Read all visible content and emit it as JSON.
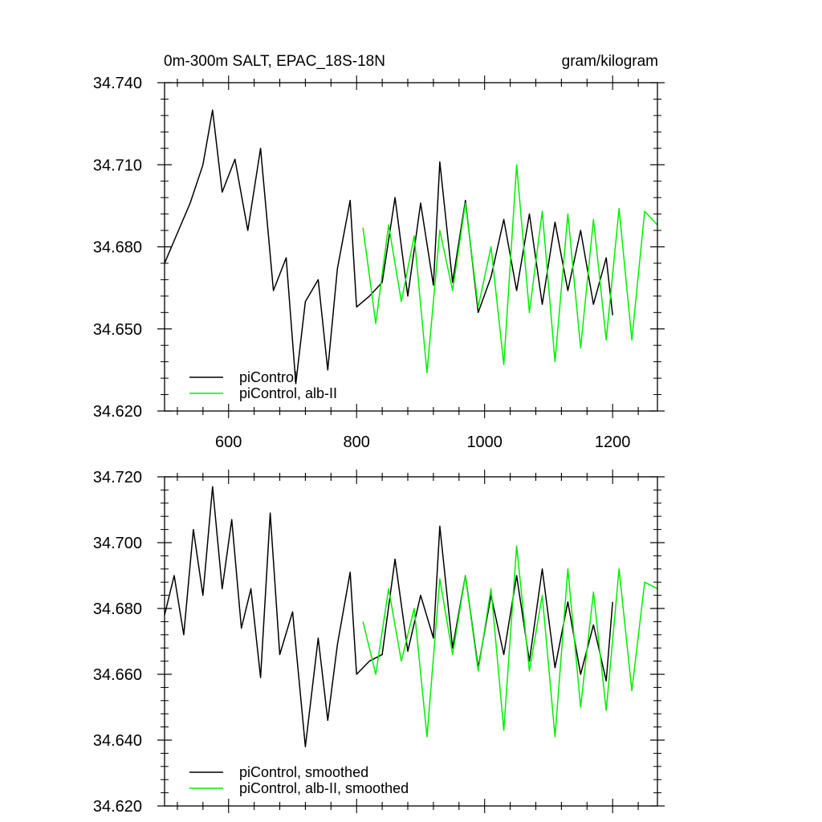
{
  "chart_data": [
    {
      "type": "line",
      "title_left": "0m-300m SALT, EPAC_18S-18N",
      "title_right": "gram/kilogram",
      "xlim": [
        500,
        1270
      ],
      "ylim": [
        34.62,
        34.74
      ],
      "x_ticks": [
        600,
        800,
        1000,
        1200
      ],
      "x_tick_labels": [
        "600",
        "800",
        "1000",
        "1200"
      ],
      "y_ticks": [
        34.62,
        34.65,
        34.68,
        34.71,
        34.74
      ],
      "y_tick_labels": [
        "34.620",
        "34.650",
        "34.680",
        "34.710",
        "34.740"
      ],
      "legend_position": "bottom-left",
      "series": [
        {
          "name": "piControl",
          "color": "#000000",
          "x": [
            500,
            520,
            540,
            560,
            575,
            590,
            610,
            630,
            650,
            670,
            690,
            705,
            720,
            740,
            755,
            770,
            790,
            800,
            820,
            840,
            860,
            880,
            900,
            920,
            930,
            950,
            970,
            990,
            1010,
            1030,
            1050,
            1070,
            1090,
            1110,
            1130,
            1150,
            1170,
            1190,
            1200
          ],
          "values": [
            34.674,
            34.685,
            34.696,
            34.71,
            34.73,
            34.7,
            34.712,
            34.686,
            34.716,
            34.664,
            34.676,
            34.63,
            34.66,
            34.668,
            34.635,
            34.672,
            34.697,
            34.658,
            34.662,
            34.667,
            34.698,
            34.662,
            34.696,
            34.666,
            34.711,
            34.667,
            34.697,
            34.656,
            34.669,
            34.69,
            34.664,
            34.692,
            34.659,
            34.689,
            34.664,
            34.686,
            34.659,
            34.676,
            34.655
          ]
        },
        {
          "name": "piControl, alb-II",
          "color": "#00ee00",
          "x": [
            810,
            830,
            850,
            870,
            890,
            910,
            930,
            950,
            970,
            990,
            1010,
            1030,
            1050,
            1070,
            1090,
            1110,
            1130,
            1150,
            1170,
            1190,
            1210,
            1230,
            1250,
            1270
          ],
          "values": [
            34.687,
            34.652,
            34.688,
            34.66,
            34.684,
            34.634,
            34.686,
            34.664,
            34.696,
            34.658,
            34.68,
            34.637,
            34.71,
            34.656,
            34.693,
            34.638,
            34.692,
            34.643,
            34.69,
            34.646,
            34.694,
            34.646,
            34.693,
            34.688
          ]
        }
      ]
    },
    {
      "type": "line",
      "xlim": [
        500,
        1270
      ],
      "ylim": [
        34.62,
        34.72
      ],
      "x_ticks": [
        600,
        800,
        1000,
        1200
      ],
      "y_ticks": [
        34.62,
        34.64,
        34.66,
        34.68,
        34.7,
        34.72
      ],
      "y_tick_labels": [
        "34.620",
        "34.640",
        "34.660",
        "34.680",
        "34.700",
        "34.720"
      ],
      "legend_position": "bottom-left",
      "series": [
        {
          "name": "piControl, smoothed",
          "color": "#000000",
          "x": [
            500,
            515,
            530,
            545,
            560,
            575,
            590,
            605,
            620,
            635,
            650,
            665,
            680,
            700,
            720,
            740,
            755,
            770,
            790,
            800,
            820,
            840,
            860,
            880,
            900,
            920,
            930,
            950,
            970,
            990,
            1010,
            1030,
            1050,
            1070,
            1090,
            1110,
            1130,
            1150,
            1170,
            1190,
            1200
          ],
          "values": [
            34.678,
            34.69,
            34.672,
            34.704,
            34.684,
            34.717,
            34.686,
            34.707,
            34.674,
            34.686,
            34.659,
            34.709,
            34.666,
            34.679,
            34.638,
            34.671,
            34.646,
            34.669,
            34.691,
            34.66,
            34.664,
            34.666,
            34.695,
            34.667,
            34.684,
            34.671,
            34.705,
            34.668,
            34.69,
            34.662,
            34.684,
            34.666,
            34.69,
            34.664,
            34.692,
            34.662,
            34.682,
            34.66,
            34.675,
            34.658,
            34.682
          ]
        },
        {
          "name": "piControl, alb-II, smoothed",
          "color": "#00ee00",
          "x": [
            810,
            830,
            850,
            870,
            890,
            910,
            930,
            950,
            970,
            990,
            1010,
            1030,
            1050,
            1070,
            1090,
            1110,
            1130,
            1150,
            1170,
            1190,
            1210,
            1230,
            1250,
            1270
          ],
          "values": [
            34.676,
            34.66,
            34.686,
            34.664,
            34.68,
            34.641,
            34.689,
            34.666,
            34.69,
            34.661,
            34.686,
            34.643,
            34.699,
            34.661,
            34.684,
            34.641,
            34.692,
            34.65,
            34.685,
            34.649,
            34.692,
            34.655,
            34.688,
            34.686
          ]
        }
      ]
    }
  ]
}
